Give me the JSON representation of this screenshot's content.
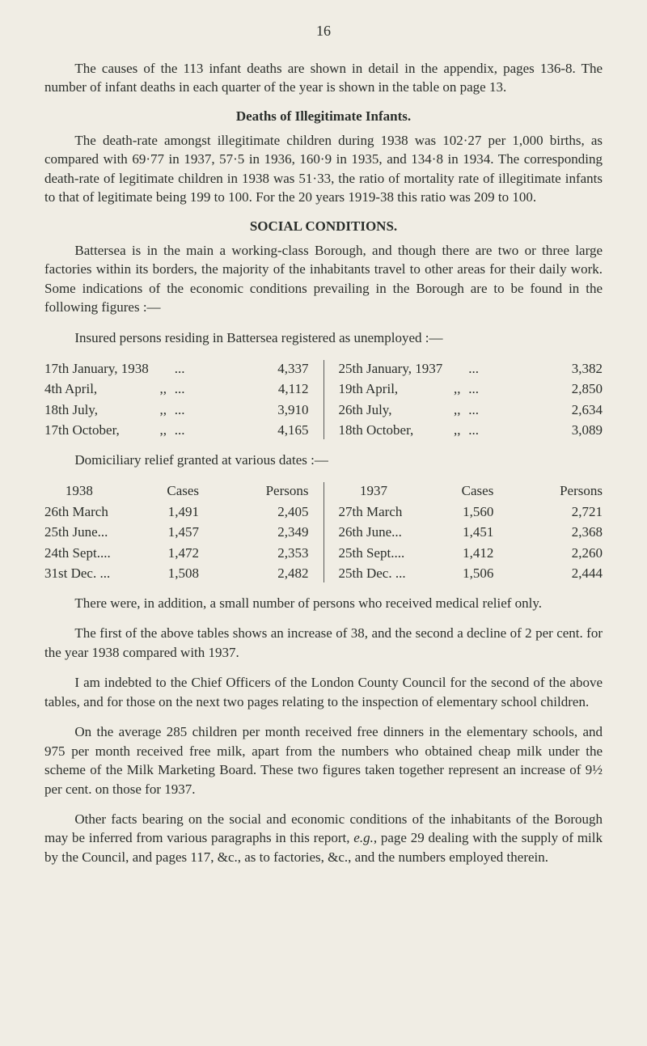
{
  "pageNumber": "16",
  "para1": "The causes of the 113 infant deaths are shown in detail in the appendix, pages 136-8. The number of infant deaths in each quarter of the year is shown in the table on page 13.",
  "heading1": "Deaths of Illegitimate Infants.",
  "para2": "The death-rate amongst illegitimate children during 1938 was 102·27 per 1,000 births, as compared with 69·77 in 1937, 57·5 in 1936, 160·9 in 1935, and 134·8 in 1934. The corresponding death-rate of legitimate children in 1938 was 51·33, the ratio of mortality rate of illegitimate infants to that of legitimate being 199 to 100. For the 20 years 1919-38 this ratio was 209 to 100.",
  "heading2": "SOCIAL CONDITIONS.",
  "para3": "Battersea is in the main a working-class Borough, and though there are two or three large factories within its borders, the majority of the inhabitants travel to other areas for their daily work. Some indications of the economic conditions prevailing in the Borough are to be found in the following figures :—",
  "para4": "Insured persons residing in Battersea registered as unemployed :—",
  "unemp": {
    "left": [
      {
        "label": "17th January, 1938",
        "ditto": "",
        "dots": "...",
        "value": "4,337"
      },
      {
        "label": "4th April,",
        "ditto": ",,",
        "dots": "...",
        "value": "4,112"
      },
      {
        "label": "18th July,",
        "ditto": ",,",
        "dots": "...",
        "value": "3,910"
      },
      {
        "label": "17th October,",
        "ditto": ",,",
        "dots": "...",
        "value": "4,165"
      }
    ],
    "right": [
      {
        "label": "25th January, 1937",
        "ditto": "",
        "dots": "...",
        "value": "3,382"
      },
      {
        "label": "19th April,",
        "ditto": ",,",
        "dots": "...",
        "value": "2,850"
      },
      {
        "label": "26th July,",
        "ditto": ",,",
        "dots": "...",
        "value": "2,634"
      },
      {
        "label": "18th October,",
        "ditto": ",,",
        "dots": "...",
        "value": "3,089"
      }
    ]
  },
  "para5": "Domiciliary relief granted at various dates :—",
  "relief": {
    "headers": {
      "year_l": "1938",
      "year_r": "1937",
      "cases": "Cases",
      "persons": "Persons"
    },
    "left": [
      {
        "label": "26th March",
        "cases": "1,491",
        "persons": "2,405"
      },
      {
        "label": "25th June...",
        "cases": "1,457",
        "persons": "2,349"
      },
      {
        "label": "24th Sept....",
        "cases": "1,472",
        "persons": "2,353"
      },
      {
        "label": "31st Dec. ...",
        "cases": "1,508",
        "persons": "2,482"
      }
    ],
    "right": [
      {
        "label": "27th March",
        "cases": "1,560",
        "persons": "2,721"
      },
      {
        "label": "26th June...",
        "cases": "1,451",
        "persons": "2,368"
      },
      {
        "label": "25th Sept....",
        "cases": "1,412",
        "persons": "2,260"
      },
      {
        "label": "25th Dec. ...",
        "cases": "1,506",
        "persons": "2,444"
      }
    ]
  },
  "para6": "There were, in addition, a small number of persons who received medical relief only.",
  "para7": "The first of the above tables shows an increase of 38, and the second a decline of 2 per cent. for the year 1938 compared with 1937.",
  "para8": "I am indebted to the Chief Officers of the London County Council for the second of the above tables, and for those on the next two pages relating to the inspection of elementary school children.",
  "para9": "On the average 285 children per month received free dinners in the elementary schools, and 975 per month received free milk, apart from the numbers who obtained cheap milk under the scheme of the Milk Marketing Board. These two figures taken together represent an increase of 9½ per cent. on those for 1937.",
  "para10_a": "Other facts bearing on the social and economic conditions of the inhabitants of the Borough may be inferred from various paragraphs in this report, ",
  "para10_i": "e.g.",
  "para10_b": ", page 29 dealing with the supply of milk by the Council, and pages 117, &c., as to factories, &c., and the numbers employed therein."
}
